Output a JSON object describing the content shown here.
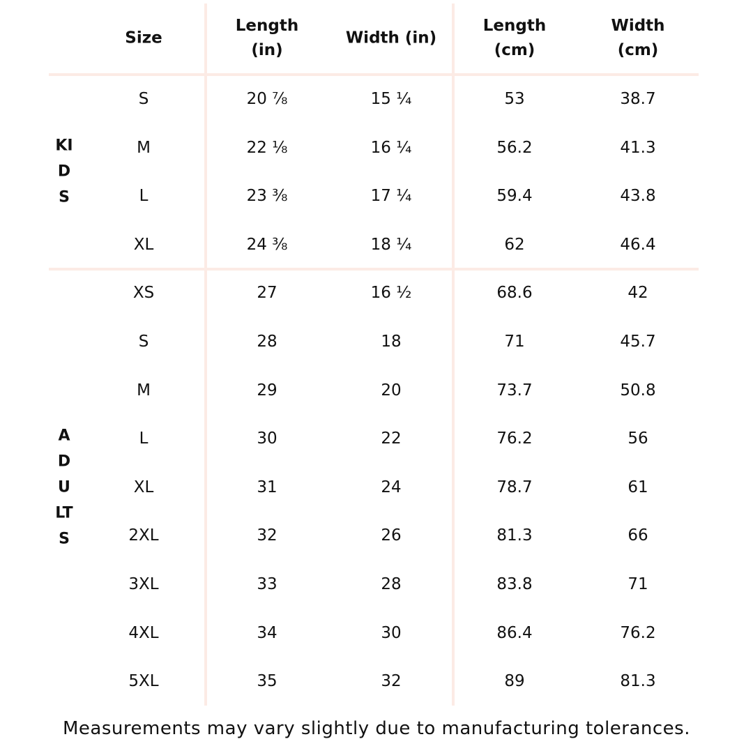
{
  "table": {
    "headers": [
      [
        "Size"
      ],
      [
        "Length",
        "(in)"
      ],
      [
        "Width (in)"
      ],
      [
        "Length",
        "(cm)"
      ],
      [
        "Width",
        "(cm)"
      ]
    ],
    "groups": [
      {
        "label": "KIDS",
        "rows": [
          [
            "S",
            "20 ⅞",
            "15 ¼",
            "53",
            "38.7"
          ],
          [
            "M",
            "22 ⅛",
            "16 ¼",
            "56.2",
            "41.3"
          ],
          [
            "L",
            "23 ⅜",
            "17 ¼",
            "59.4",
            "43.8"
          ],
          [
            "XL",
            "24 ⅜",
            "18 ¼",
            "62",
            "46.4"
          ]
        ]
      },
      {
        "label": "ADULTS",
        "rows": [
          [
            "XS",
            "27",
            "16 ½",
            "68.6",
            "42"
          ],
          [
            "S",
            "28",
            "18",
            "71",
            "45.7"
          ],
          [
            "M",
            "29",
            "20",
            "73.7",
            "50.8"
          ],
          [
            "L",
            "30",
            "22",
            "76.2",
            "56"
          ],
          [
            "XL",
            "31",
            "24",
            "78.7",
            "61"
          ],
          [
            "2XL",
            "32",
            "26",
            "81.3",
            "66"
          ],
          [
            "3XL",
            "33",
            "28",
            "83.8",
            "71"
          ],
          [
            "4XL",
            "34",
            "30",
            "86.4",
            "76.2"
          ],
          [
            "5XL",
            "35",
            "32",
            "89",
            "81.3"
          ]
        ]
      }
    ]
  },
  "footnote": "Measurements may vary slightly due to manufacturing tolerances."
}
